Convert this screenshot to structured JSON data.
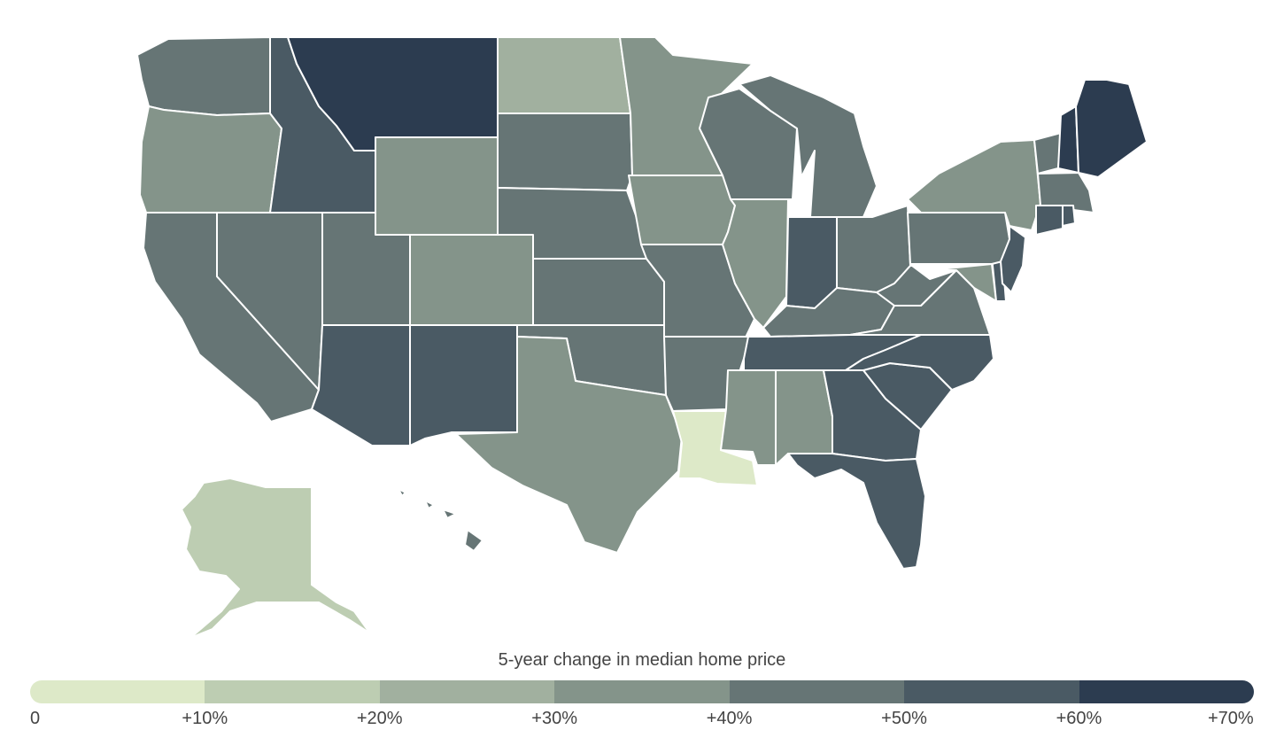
{
  "legend": {
    "title": "5-year change in median home price",
    "ticks": [
      "0",
      "+10%",
      "+20%",
      "+30%",
      "+40%",
      "+50%",
      "+60%",
      "+70%"
    ],
    "colors": [
      "#dde9c8",
      "#bdcdb2",
      "#a1b09f",
      "#84948a",
      "#667575",
      "#4a5a64",
      "#2c3c50"
    ]
  },
  "map_data": {
    "type": "choropleth",
    "region": "United States",
    "bins": [
      {
        "range": "0 to +10%",
        "states": [
          "LA"
        ]
      },
      {
        "range": "+10% to +20%",
        "states": [
          "AK"
        ]
      },
      {
        "range": "+20% to +30%",
        "states": [
          "ND"
        ]
      },
      {
        "range": "+30% to +40%",
        "states": [
          "OR",
          "WY",
          "CO",
          "MN",
          "IA",
          "IL",
          "TX",
          "MS",
          "AL",
          "NY",
          "MD"
        ]
      },
      {
        "range": "+40% to +50%",
        "states": [
          "WA",
          "CA",
          "NV",
          "UT",
          "SD",
          "NE",
          "KS",
          "OK",
          "MO",
          "AR",
          "WI",
          "MI",
          "OH",
          "KY",
          "WV",
          "VA",
          "PA",
          "VT",
          "HI",
          "MA"
        ]
      },
      {
        "range": "+50% to +60%",
        "states": [
          "ID",
          "AZ",
          "NM",
          "IN",
          "TN",
          "NC",
          "SC",
          "GA",
          "FL",
          "NJ",
          "DE",
          "CT",
          "RI"
        ]
      },
      {
        "range": "+60% to +70%",
        "states": [
          "MT",
          "NH",
          "ME"
        ]
      }
    ]
  }
}
